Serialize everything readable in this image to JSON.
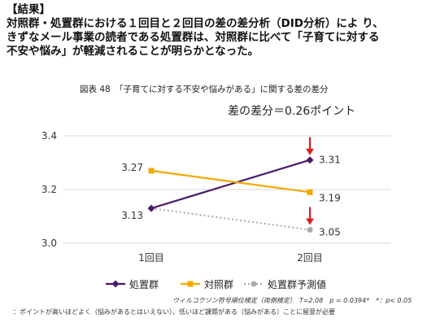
{
  "header": {
    "line1": "【結果】",
    "line2": "対照群・処置群における１回目と２回目の差の差分析（DID分析）によ り、",
    "line3": "きずなメール事業の読者である処置群は、対照群に比べて「子育てに対する",
    "line4": "不安や悩み」が軽減されることが明らかとなった。"
  },
  "figure_title": "図表 48　「子育てに対する不安や悩みがある」に関する差の差分",
  "diff_label": "差の差分＝0.26ポイント",
  "notes": {
    "test": "ウィルコクソン符号順位検定（両側検定）　T=2.08　p = 0.0394*　*：p< 0.05",
    "footnote": "：ポイントが高いほどよく（悩みがあるとはいえない）、低いほど課題がある（悩みがある）ことに留意が必要"
  },
  "colors": {
    "treatment": "#4b1a6b",
    "control": "#f2a900",
    "predicted": "#aaaaaa",
    "arrow": "#d62020",
    "grid": "#d9d9d9"
  },
  "chart_data": {
    "type": "line",
    "categories": [
      "1回目",
      "2回目"
    ],
    "ylim": [
      3.0,
      3.4
    ],
    "yticks": [
      "3.0",
      "3.2",
      "3.4"
    ],
    "series": [
      {
        "name": "処置群",
        "values": [
          3.13,
          3.31
        ],
        "labels": [
          "3.13",
          "3.31"
        ],
        "marker": "diamond",
        "style": "solid"
      },
      {
        "name": "対照群",
        "values": [
          3.27,
          3.19
        ],
        "labels": [
          "3.27",
          "3.19"
        ],
        "marker": "square",
        "style": "solid"
      },
      {
        "name": "処置群予測値",
        "values": [
          3.13,
          3.05
        ],
        "labels": [
          "",
          "3.05"
        ],
        "marker": "circle",
        "style": "dotted"
      }
    ],
    "legend_position": "bottom",
    "grid": true
  }
}
